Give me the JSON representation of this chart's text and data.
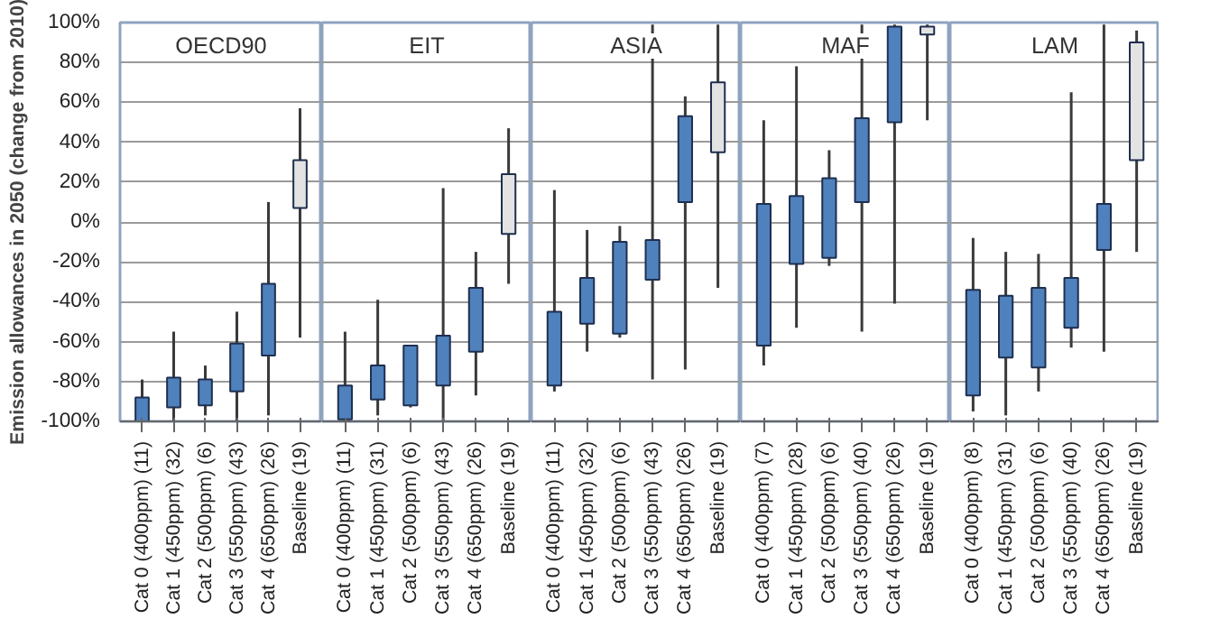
{
  "chart_data": [
    {
      "type": "candlestick",
      "title": "OECD90",
      "ylabel": "Emission allowances in 2050 (change from 2010)",
      "categories": [
        "Cat 0 (400ppm) (11)",
        "Cat 1 (450ppm) (32)",
        "Cat 2 (500ppm) (6)",
        "Cat 3 (550ppm) (43)",
        "Cat 4 (650ppm) (26)",
        "Baseline (19)"
      ],
      "ohlc": [
        [
          -100,
          -79,
          -100,
          -88
        ],
        [
          -93,
          -55,
          -100,
          -78
        ],
        [
          -92,
          -72,
          -97,
          -79
        ],
        [
          -85,
          -45,
          -100,
          -61
        ],
        [
          -67,
          10,
          -97,
          -31
        ],
        [
          7,
          57,
          -58,
          31
        ]
      ],
      "colors": [
        "#4f81bd",
        "#4f81bd",
        "#4f81bd",
        "#4f81bd",
        "#4f81bd",
        "#e3e3e3"
      ],
      "ylim": [
        -100,
        100
      ],
      "yticks": [
        {
          "value": -100,
          "label": "-100%"
        },
        {
          "value": -80,
          "label": "-80%"
        },
        {
          "value": -60,
          "label": "-60%"
        },
        {
          "value": -40,
          "label": "-40%"
        },
        {
          "value": -20,
          "label": "-20%"
        },
        {
          "value": 0,
          "label": "0%"
        },
        {
          "value": 20,
          "label": "20%"
        },
        {
          "value": 40,
          "label": "40%"
        },
        {
          "value": 60,
          "label": "60%"
        },
        {
          "value": 80,
          "label": "80%"
        },
        {
          "value": 100,
          "label": "100%"
        }
      ],
      "grid": "y"
    },
    {
      "type": "candlestick",
      "title": "EIT",
      "categories": [
        "Cat 0 (400ppm) (11)",
        "Cat 1 (450ppm) (31)",
        "Cat 2 (500ppm) (6)",
        "Cat 3 (550ppm) (43)",
        "Cat 4 (650ppm) (26)",
        "Baseline (19)"
      ],
      "ohlc": [
        [
          -99,
          -55,
          -100,
          -82
        ],
        [
          -89,
          -39,
          -97,
          -72
        ],
        [
          -92,
          -62,
          -93,
          -62
        ],
        [
          -82,
          17,
          -100,
          -57
        ],
        [
          -65,
          -15,
          -87,
          -33
        ],
        [
          -6,
          47,
          -31,
          24
        ]
      ],
      "colors": [
        "#4f81bd",
        "#4f81bd",
        "#4f81bd",
        "#4f81bd",
        "#4f81bd",
        "#e3e3e3"
      ],
      "ylim": [
        -100,
        100
      ],
      "yticks": [
        -100,
        -80,
        -60,
        -40,
        -20,
        0,
        20,
        40,
        60,
        80,
        100
      ],
      "grid": "y",
      "tick_labels": "x"
    },
    {
      "type": "candlestick",
      "title": "ASIA",
      "categories": [
        "Cat 0 (400ppm) (11)",
        "Cat 1 (450ppm) (32)",
        "Cat 2 (500ppm) (6)",
        "Cat 3 (550ppm) (43)",
        "Cat 4 (650ppm) (26)",
        "Baseline (19)"
      ],
      "ohlc": [
        [
          -82,
          16,
          -85,
          -45
        ],
        [
          -51,
          -4,
          -65,
          -28
        ],
        [
          -56,
          -2,
          -58,
          -10
        ],
        [
          -29,
          99,
          -79,
          -9
        ],
        [
          10,
          63,
          -74,
          53
        ],
        [
          35,
          99,
          -33,
          70
        ]
      ],
      "colors": [
        "#4f81bd",
        "#4f81bd",
        "#4f81bd",
        "#4f81bd",
        "#4f81bd",
        "#e3e3e3"
      ],
      "ylim": [
        -100,
        100
      ],
      "yticks": [
        -100,
        -80,
        -60,
        -40,
        -20,
        0,
        20,
        40,
        60,
        80,
        100
      ],
      "grid": "y",
      "tick_labels": "x"
    },
    {
      "type": "candlestick",
      "title": "MAF",
      "categories": [
        "Cat 0 (400ppm) (7)",
        "Cat 1 (450ppm) (28)",
        "Cat 2 (500ppm) (6)",
        "Cat 3 (550ppm) (40)",
        "Cat 4 (650ppm) (26)",
        "Baseline (19)"
      ],
      "ohlc": [
        [
          -62,
          51,
          -72,
          9
        ],
        [
          -21,
          78,
          -53,
          13
        ],
        [
          -18,
          36,
          -22,
          22
        ],
        [
          10,
          99,
          -55,
          52
        ],
        [
          50,
          99,
          -41,
          98
        ],
        [
          94,
          99,
          51,
          98
        ]
      ],
      "colors": [
        "#4f81bd",
        "#4f81bd",
        "#4f81bd",
        "#4f81bd",
        "#4f81bd",
        "#e3e3e3"
      ],
      "ylim": [
        -100,
        100
      ],
      "yticks": [
        -100,
        -80,
        -60,
        -40,
        -20,
        0,
        20,
        40,
        60,
        80,
        100
      ],
      "grid": "y",
      "tick_labels": "x"
    },
    {
      "type": "candlestick",
      "title": "LAM",
      "categories": [
        "Cat 0 (400ppm) (8)",
        "Cat 1 (450ppm) (31)",
        "Cat 2 (500ppm) (6)",
        "Cat 3 (550ppm) (40)",
        "Cat 4 (650ppm) (26)",
        "Baseline (19)"
      ],
      "ohlc": [
        [
          -87,
          -8,
          -95,
          -34
        ],
        [
          -68,
          -15,
          -97,
          -37
        ],
        [
          -73,
          -16,
          -85,
          -33
        ],
        [
          -53,
          65,
          -63,
          -28
        ],
        [
          -14,
          99,
          -65,
          9
        ],
        [
          31,
          96,
          -15,
          90
        ]
      ],
      "colors": [
        "#4f81bd",
        "#4f81bd",
        "#4f81bd",
        "#4f81bd",
        "#4f81bd",
        "#e3e3e3"
      ],
      "ylim": [
        -100,
        100
      ],
      "yticks": [
        -100,
        -80,
        -60,
        -40,
        -20,
        0,
        20,
        40,
        60,
        80,
        100
      ],
      "grid": "y",
      "tick_labels": "x"
    }
  ]
}
